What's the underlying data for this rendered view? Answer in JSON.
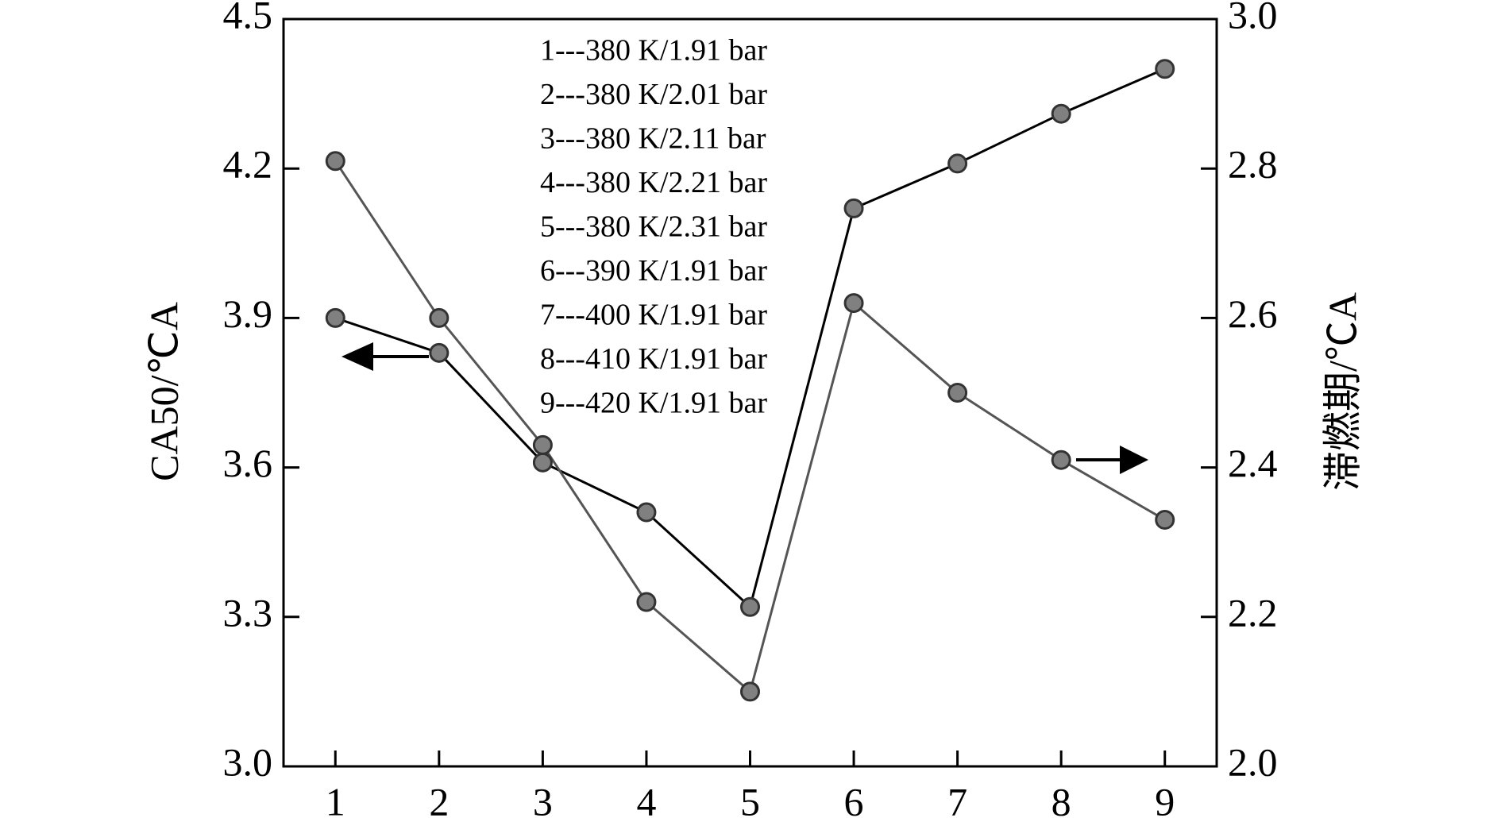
{
  "chart_data": {
    "type": "line",
    "x": [
      1,
      2,
      3,
      4,
      5,
      6,
      7,
      8,
      9
    ],
    "xlim": [
      0.5,
      9.5
    ],
    "xticks": [
      1,
      2,
      3,
      4,
      5,
      6,
      7,
      8,
      9
    ],
    "ylabel": "CA50/℃A",
    "y2label": "滞燃期/℃A",
    "ylim": [
      3.0,
      4.5
    ],
    "yticks": [
      {
        "value": 3.0,
        "label": "3.0"
      },
      {
        "value": 3.3,
        "label": "3.3"
      },
      {
        "value": 3.6,
        "label": "3.6"
      },
      {
        "value": 3.9,
        "label": "3.9"
      },
      {
        "value": 4.2,
        "label": "4.2"
      },
      {
        "value": 4.5,
        "label": "4.5"
      }
    ],
    "y2lim": [
      2.0,
      3.0
    ],
    "y2ticks": [
      {
        "value": 2.0,
        "label": "2.0"
      },
      {
        "value": 2.2,
        "label": "2.2"
      },
      {
        "value": 2.4,
        "label": "2.4"
      },
      {
        "value": 2.6,
        "label": "2.6"
      },
      {
        "value": 2.8,
        "label": "2.8"
      },
      {
        "value": 3.0,
        "label": "3.0"
      }
    ],
    "marker_color": "#808080",
    "series": [
      {
        "color": "#000000",
        "values": [
          3.9,
          3.83,
          3.61,
          3.51,
          3.32,
          4.12,
          4.21,
          4.31,
          4.4
        ]
      },
      {
        "color": "#555555",
        "axis": "y2",
        "values": [
          2.81,
          2.6,
          2.43,
          2.22,
          2.1,
          2.62,
          2.5,
          2.41,
          2.33
        ]
      }
    ],
    "annotations": [
      "1---380 K/1.91 bar",
      "2---380 K/2.01 bar",
      "3---380 K/2.11 bar",
      "4---380 K/2.21 bar",
      "5---380 K/2.31 bar",
      "6---390 K/1.91 bar",
      "7---400 K/1.91 bar",
      "8---410 K/1.91 bar",
      "9---420 K/1.91 bar"
    ]
  }
}
